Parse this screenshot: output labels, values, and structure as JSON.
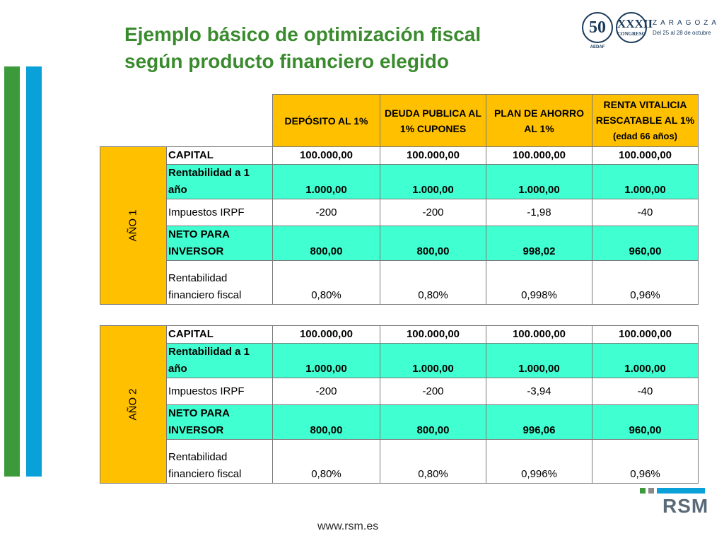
{
  "title": {
    "line1": "Ejemplo básico de optimización fiscal",
    "line2": "según producto financiero elegido"
  },
  "logo": {
    "fifty": "50",
    "fifty_sub": "AEDAF",
    "congreso_num": "XXXII",
    "congreso_label": "CONGRESO",
    "city": "ZARAGOZA",
    "dates": "Del 25 al 28 de octubre"
  },
  "headers": {
    "col1": "DEPÓSITO AL 1%",
    "col2": "DEUDA PUBLICA AL 1% CUPONES",
    "col3": "PLAN DE AHORRO AL 1%",
    "col4_main": "RENTA VITALICIA RESCATABLE AL 1%",
    "col4_note": "(edad 66 años)"
  },
  "year1": {
    "label": "AÑO 1",
    "rows": [
      {
        "label": "CAPITAL",
        "values": [
          "100.000,00",
          "100.000,00",
          "100.000,00",
          "100.000,00"
        ]
      },
      {
        "label": "Rentabilidad a 1 año",
        "values": [
          "1.000,00",
          "1.000,00",
          "1.000,00",
          "1.000,00"
        ]
      },
      {
        "label": "Impuestos IRPF",
        "values": [
          "-200",
          "-200",
          "-1,98",
          "-40"
        ]
      },
      {
        "label": "NETO PARA INVERSOR",
        "values": [
          "800,00",
          "800,00",
          "998,02",
          "960,00"
        ]
      },
      {
        "label": "Rentabilidad financiero fiscal",
        "values": [
          "0,80%",
          "0,80%",
          "0,998%",
          "0,96%"
        ]
      }
    ]
  },
  "year2": {
    "label": "AÑO 2",
    "rows": [
      {
        "label": "CAPITAL",
        "values": [
          "100.000,00",
          "100.000,00",
          "100.000,00",
          "100.000,00"
        ]
      },
      {
        "label": "Rentabilidad a 1 año",
        "values": [
          "1.000,00",
          "1.000,00",
          "1.000,00",
          "1.000,00"
        ]
      },
      {
        "label": "Impuestos IRPF",
        "values": [
          "-200",
          "-200",
          "-3,94",
          "-40"
        ]
      },
      {
        "label": "NETO PARA INVERSOR",
        "values": [
          "800,00",
          "800,00",
          "996,06",
          "960,00"
        ]
      },
      {
        "label": "Rentabilidad financiero fiscal",
        "values": [
          "0,80%",
          "0,80%",
          "0,996%",
          "0,96%"
        ]
      }
    ]
  },
  "brand": "RSM",
  "website": "www.rsm.es",
  "colors": {
    "title_green": "#3a8a2e",
    "orange": "#ffc000",
    "cyan": "#40ffd0",
    "bar_green": "#3c9a3a",
    "bar_blue": "#0aa0d8"
  }
}
